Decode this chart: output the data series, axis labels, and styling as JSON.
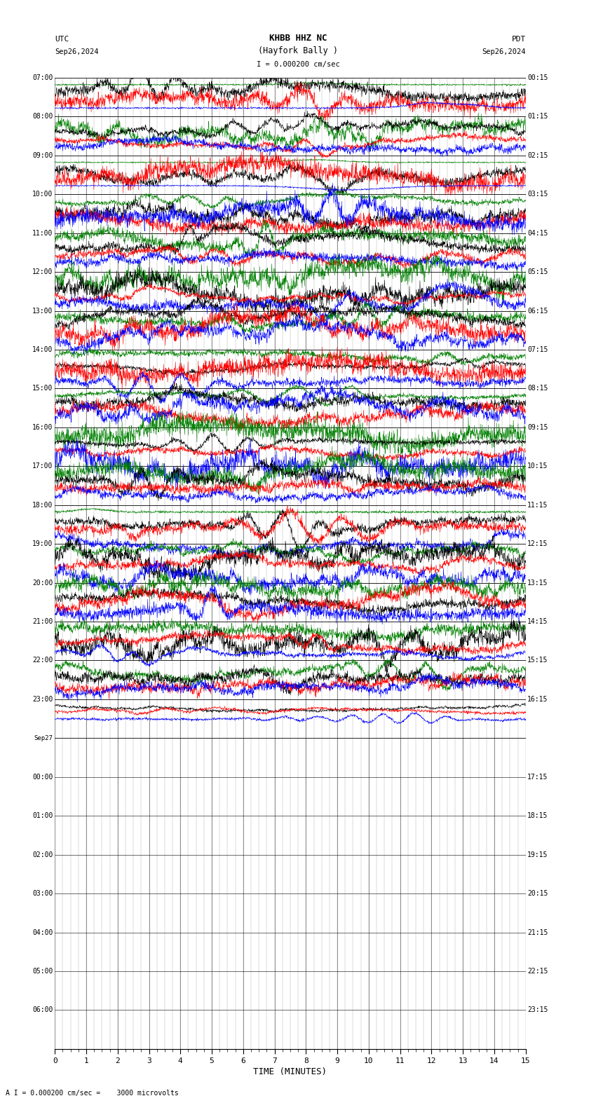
{
  "title_line1": "KHBB HHZ NC",
  "title_line2": "(Hayfork Bally )",
  "scale_label": "I = 0.000200 cm/sec",
  "utc_label": "UTC",
  "utc_date": "Sep26,2024",
  "pdt_label": "PDT",
  "pdt_date": "Sep26,2024",
  "left_times": [
    "07:00",
    "08:00",
    "09:00",
    "10:00",
    "11:00",
    "12:00",
    "13:00",
    "14:00",
    "15:00",
    "16:00",
    "17:00",
    "18:00",
    "19:00",
    "20:00",
    "21:00",
    "22:00",
    "23:00",
    "Sep27",
    "00:00",
    "01:00",
    "02:00",
    "03:00",
    "04:00",
    "05:00",
    "06:00"
  ],
  "right_times": [
    "00:15",
    "01:15",
    "02:15",
    "03:15",
    "04:15",
    "05:15",
    "06:15",
    "07:15",
    "08:15",
    "09:15",
    "10:15",
    "11:15",
    "12:15",
    "13:15",
    "14:15",
    "15:15",
    "16:15",
    "",
    "17:15",
    "18:15",
    "19:15",
    "20:15",
    "21:15",
    "22:15",
    "23:15"
  ],
  "xlabel": "TIME (MINUTES)",
  "footer": "A I = 0.000200 cm/sec =    3000 microvolts",
  "xmin": 0,
  "xmax": 15,
  "xticks": [
    0,
    1,
    2,
    3,
    4,
    5,
    6,
    7,
    8,
    9,
    10,
    11,
    12,
    13,
    14,
    15
  ],
  "bg_color": "#ffffff",
  "trace_colors": [
    "green",
    "black",
    "red",
    "blue"
  ],
  "num_rows": 25,
  "active_rows": 17,
  "traces_per_row": 4,
  "figwidth": 8.5,
  "figheight": 15.84
}
